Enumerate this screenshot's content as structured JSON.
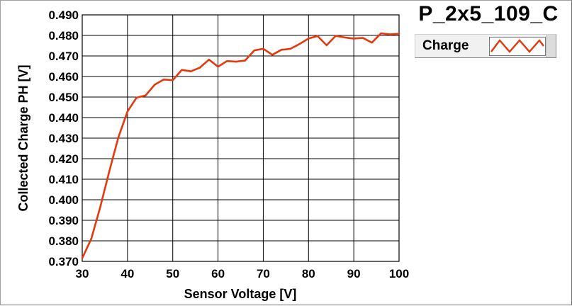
{
  "chart_data": {
    "type": "line",
    "title": "P_2x5_109_C",
    "xlabel": "Sensor Voltage [V]",
    "ylabel": "Collected Charge PH [V]",
    "xlim": [
      30,
      100
    ],
    "ylim": [
      0.37,
      0.49
    ],
    "x_ticks": [
      "30",
      "40",
      "50",
      "60",
      "70",
      "80",
      "90",
      "100"
    ],
    "y_ticks": [
      "0.370",
      "0.380",
      "0.390",
      "0.400",
      "0.410",
      "0.420",
      "0.430",
      "0.440",
      "0.450",
      "0.460",
      "0.470",
      "0.480",
      "0.490"
    ],
    "grid": true,
    "legend_position": "top-right",
    "series": [
      {
        "name": "Charge",
        "color": "#e5380f",
        "x": [
          30,
          32,
          34,
          36,
          38,
          40,
          42,
          44,
          46,
          48,
          50,
          52,
          54,
          56,
          58,
          60,
          62,
          64,
          66,
          68,
          70,
          72,
          74,
          76,
          78,
          80,
          82,
          84,
          86,
          88,
          90,
          92,
          94,
          96,
          98,
          100
        ],
        "y": [
          0.3715,
          0.381,
          0.3965,
          0.414,
          0.4305,
          0.443,
          0.4497,
          0.4508,
          0.456,
          0.4585,
          0.4582,
          0.4632,
          0.4625,
          0.4643,
          0.4682,
          0.4648,
          0.4675,
          0.4672,
          0.4678,
          0.4727,
          0.4735,
          0.4706,
          0.473,
          0.4735,
          0.4758,
          0.4785,
          0.4797,
          0.4752,
          0.4798,
          0.479,
          0.4785,
          0.4788,
          0.4765,
          0.481,
          0.4805,
          0.4808
        ]
      }
    ]
  }
}
